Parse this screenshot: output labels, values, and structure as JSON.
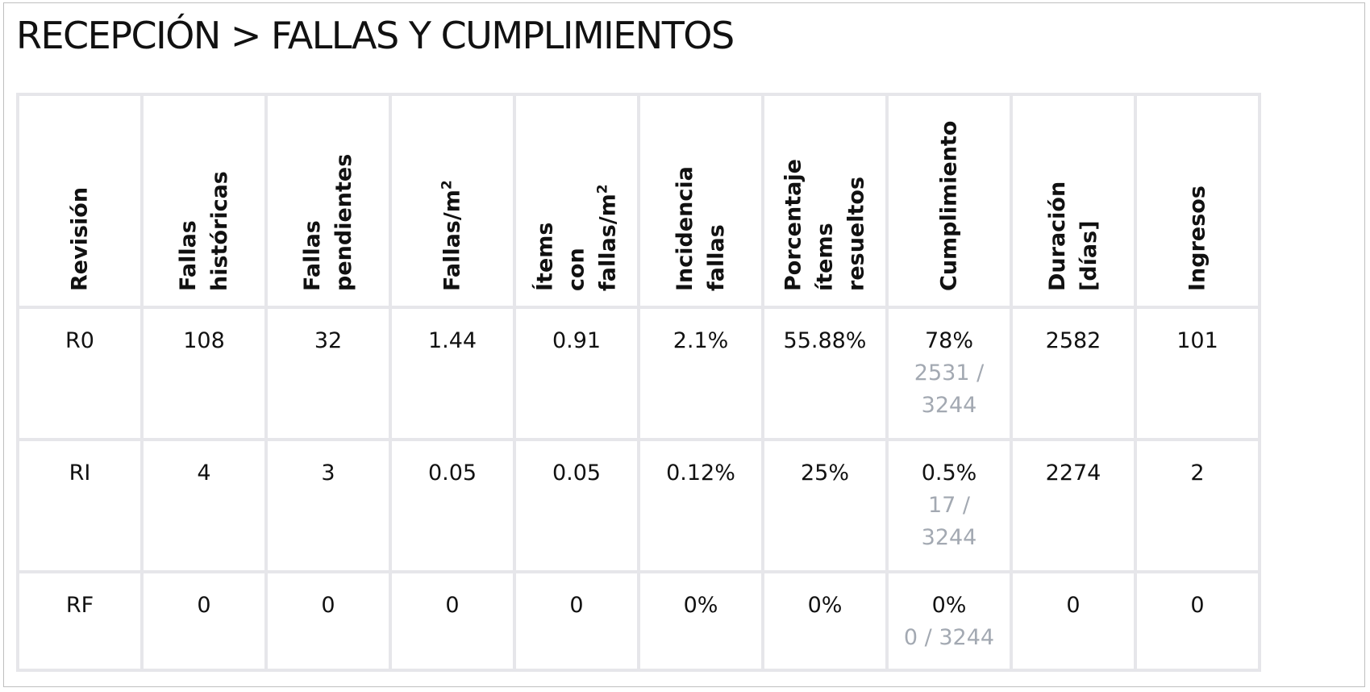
{
  "title": "RECEPCIÓN > FALLAS Y CUMPLIMIENTOS",
  "colors": {
    "grid": "#e6e6ea",
    "secondary_text": "#a3a9b2",
    "border": "#bfbfbf"
  },
  "columns": [
    {
      "line1": "Revisión",
      "line2": "",
      "line3": "",
      "sup": ""
    },
    {
      "line1": "Fallas",
      "line2": "históricas",
      "line3": "",
      "sup": ""
    },
    {
      "line1": "Fallas",
      "line2": "pendientes",
      "line3": "",
      "sup": ""
    },
    {
      "line1": "Fallas/m",
      "line2": "",
      "line3": "",
      "sup": "2"
    },
    {
      "line1": "Ítems",
      "line2": "con",
      "line3": "fallas/m",
      "sup": "2"
    },
    {
      "line1": "Incidencia",
      "line2": "fallas",
      "line3": "",
      "sup": ""
    },
    {
      "line1": "Porcentaje",
      "line2": "ítems",
      "line3": "resueltos",
      "sup": ""
    },
    {
      "line1": "Cumplimiento",
      "line2": "",
      "line3": "",
      "sup": ""
    },
    {
      "line1": "Duración",
      "line2": "[días]",
      "line3": "",
      "sup": ""
    },
    {
      "line1": "Ingresos",
      "line2": "",
      "line3": "",
      "sup": ""
    }
  ],
  "rows": [
    {
      "revision": "R0",
      "fallas_historicas": "108",
      "fallas_pendientes": "32",
      "fallas_m2": "1.44",
      "items_fallas_m2": "0.91",
      "incidencia": "2.1%",
      "porcentaje_resueltos": "55.88%",
      "cumplimiento": "78%",
      "cumplimiento_detalle": "2531 /\n3244",
      "duracion": "2582",
      "ingresos": "101"
    },
    {
      "revision": "RI",
      "fallas_historicas": "4",
      "fallas_pendientes": "3",
      "fallas_m2": "0.05",
      "items_fallas_m2": "0.05",
      "incidencia": "0.12%",
      "porcentaje_resueltos": "25%",
      "cumplimiento": "0.5%",
      "cumplimiento_detalle": "17 /\n3244",
      "duracion": "2274",
      "ingresos": "2"
    },
    {
      "revision": "RF",
      "fallas_historicas": "0",
      "fallas_pendientes": "0",
      "fallas_m2": "0",
      "items_fallas_m2": "0",
      "incidencia": "0%",
      "porcentaje_resueltos": "0%",
      "cumplimiento": "0%",
      "cumplimiento_detalle": "0 / 3244",
      "duracion": "0",
      "ingresos": "0"
    }
  ]
}
